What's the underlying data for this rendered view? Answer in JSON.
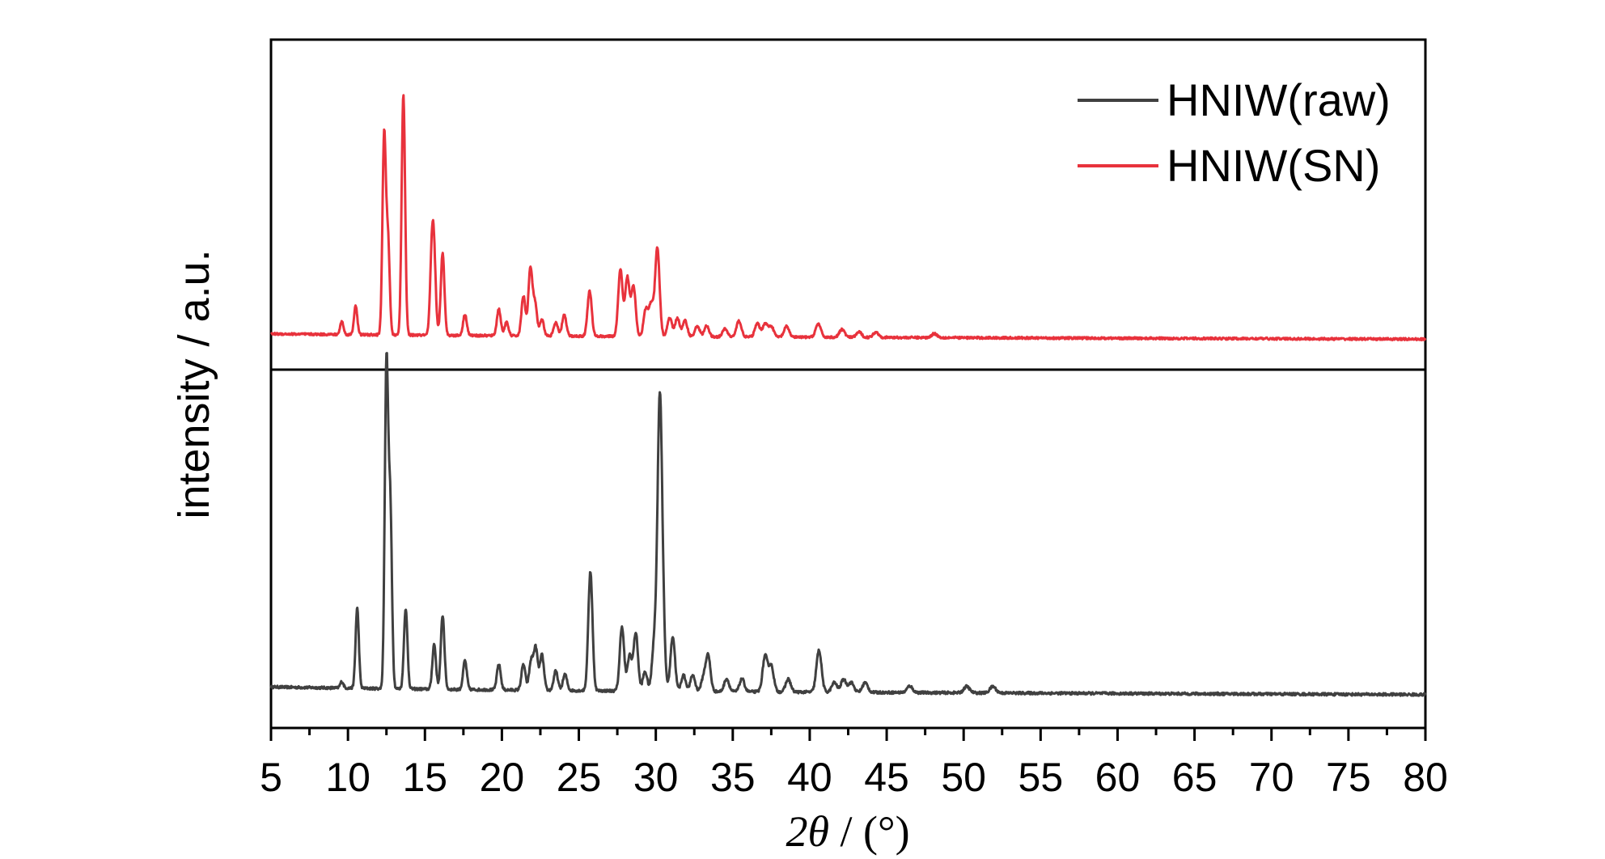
{
  "chart_data": {
    "type": "line",
    "title": "",
    "xlabel": {
      "symbol": "2θ",
      "unit": " / (°)"
    },
    "ylabel": "intensity / a.u.",
    "xlim": [
      5,
      80
    ],
    "x_ticks": [
      5,
      10,
      15,
      20,
      25,
      30,
      35,
      40,
      45,
      50,
      55,
      60,
      65,
      70,
      75,
      80
    ],
    "y_scale": "arbitrary units, no ticks",
    "layout": "two stacked panels sharing x-axis (HNIW(SN) top, HNIW(raw) bottom)",
    "legend": {
      "placement": "top-right"
    },
    "series": [
      {
        "name": "HNIW(raw)",
        "color": "#404040",
        "panel": "bottom",
        "baseline": 0.03,
        "peaks": [
          [
            9.6,
            0.02
          ],
          [
            10.6,
            0.25
          ],
          [
            12.5,
            1.0
          ],
          [
            12.75,
            0.55
          ],
          [
            13.75,
            0.25
          ],
          [
            15.6,
            0.14
          ],
          [
            16.15,
            0.23
          ],
          [
            17.6,
            0.09
          ],
          [
            19.8,
            0.08
          ],
          [
            21.4,
            0.08
          ],
          [
            21.9,
            0.09
          ],
          [
            22.2,
            0.13
          ],
          [
            22.6,
            0.11
          ],
          [
            23.5,
            0.06
          ],
          [
            24.1,
            0.05
          ],
          [
            25.75,
            0.37
          ],
          [
            27.8,
            0.2
          ],
          [
            28.3,
            0.11
          ],
          [
            28.7,
            0.18
          ],
          [
            29.3,
            0.06
          ],
          [
            29.9,
            0.15
          ],
          [
            30.25,
            0.85
          ],
          [
            30.45,
            0.18
          ],
          [
            31.1,
            0.17
          ],
          [
            31.8,
            0.05
          ],
          [
            32.4,
            0.05
          ],
          [
            33.1,
            0.04
          ],
          [
            33.4,
            0.11
          ],
          [
            34.6,
            0.04
          ],
          [
            35.6,
            0.04
          ],
          [
            37.1,
            0.11
          ],
          [
            37.5,
            0.08
          ],
          [
            38.6,
            0.04
          ],
          [
            40.6,
            0.13
          ],
          [
            41.6,
            0.03
          ],
          [
            42.2,
            0.04
          ],
          [
            42.7,
            0.03
          ],
          [
            43.6,
            0.03
          ],
          [
            46.5,
            0.02
          ],
          [
            50.2,
            0.02
          ],
          [
            51.9,
            0.02
          ]
        ]
      },
      {
        "name": "HNIW(SN)",
        "color": "#e8323c",
        "panel": "top",
        "baseline": 0.02,
        "peaks": [
          [
            9.6,
            0.05
          ],
          [
            10.5,
            0.11
          ],
          [
            12.35,
            0.74
          ],
          [
            12.6,
            0.35
          ],
          [
            13.6,
            0.9
          ],
          [
            15.45,
            0.28
          ],
          [
            15.6,
            0.25
          ],
          [
            16.15,
            0.31
          ],
          [
            17.6,
            0.08
          ],
          [
            19.8,
            0.1
          ],
          [
            20.3,
            0.05
          ],
          [
            21.4,
            0.15
          ],
          [
            21.85,
            0.25
          ],
          [
            22.15,
            0.12
          ],
          [
            22.6,
            0.06
          ],
          [
            23.5,
            0.05
          ],
          [
            24.05,
            0.08
          ],
          [
            25.7,
            0.17
          ],
          [
            27.7,
            0.25
          ],
          [
            28.15,
            0.22
          ],
          [
            28.55,
            0.19
          ],
          [
            29.35,
            0.1
          ],
          [
            29.7,
            0.12
          ],
          [
            30.1,
            0.33
          ],
          [
            30.9,
            0.07
          ],
          [
            31.4,
            0.07
          ],
          [
            31.9,
            0.06
          ],
          [
            32.7,
            0.04
          ],
          [
            33.3,
            0.04
          ],
          [
            34.5,
            0.03
          ],
          [
            35.4,
            0.06
          ],
          [
            36.6,
            0.05
          ],
          [
            37.1,
            0.05
          ],
          [
            37.5,
            0.04
          ],
          [
            38.5,
            0.04
          ],
          [
            40.55,
            0.05
          ],
          [
            42.1,
            0.03
          ],
          [
            43.2,
            0.02
          ],
          [
            44.3,
            0.02
          ],
          [
            48.1,
            0.015
          ]
        ]
      }
    ]
  }
}
